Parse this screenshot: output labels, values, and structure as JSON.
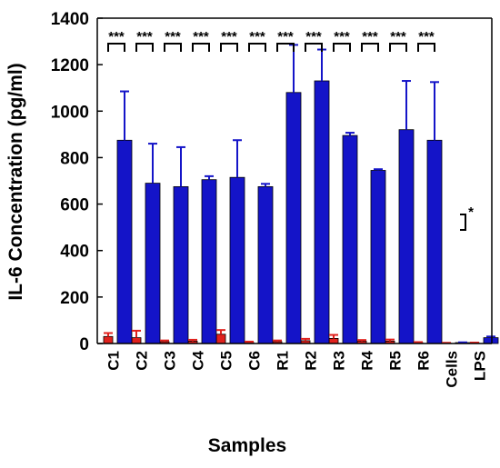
{
  "chart_data": {
    "type": "bar",
    "title": "",
    "xlabel": "Samples",
    "ylabel": "IL-6 Concentration (pg/ml)",
    "ylim": [
      0,
      1400
    ],
    "yticks": [
      0,
      200,
      400,
      600,
      800,
      1000,
      1200,
      1400
    ],
    "categories": [
      "C1",
      "C2",
      "C3",
      "C4",
      "C5",
      "C6",
      "R1",
      "R2",
      "R3",
      "R4",
      "R5",
      "R6",
      "Cells",
      "LPS"
    ],
    "series": [
      {
        "color": "#e0211d",
        "values": [
          30,
          25,
          8,
          10,
          40,
          5,
          8,
          12,
          22,
          10,
          10,
          4,
          2,
          3
        ],
        "errors": [
          15,
          30,
          5,
          6,
          18,
          3,
          5,
          8,
          15,
          5,
          7,
          2,
          1,
          1
        ]
      },
      {
        "color": "#1414c8",
        "values": [
          875,
          690,
          675,
          705,
          715,
          675,
          1080,
          1130,
          895,
          745,
          920,
          875,
          4,
          25
        ],
        "errors": [
          210,
          170,
          170,
          15,
          160,
          12,
          205,
          135,
          12,
          5,
          210,
          250,
          1,
          5
        ]
      }
    ],
    "significance": [
      {
        "category": "C1",
        "label": "***"
      },
      {
        "category": "C2",
        "label": "***"
      },
      {
        "category": "C3",
        "label": "***"
      },
      {
        "category": "C4",
        "label": "***"
      },
      {
        "category": "C5",
        "label": "***"
      },
      {
        "category": "C6",
        "label": "***"
      },
      {
        "category": "R1",
        "label": "***"
      },
      {
        "category": "R2",
        "label": "***"
      },
      {
        "category": "R3",
        "label": "***"
      },
      {
        "category": "R4",
        "label": "***"
      },
      {
        "category": "R5",
        "label": "***"
      },
      {
        "category": "R6",
        "label": "***"
      },
      {
        "category": "Cells-LPS",
        "label": "*"
      }
    ],
    "grid": false,
    "legend": "none"
  }
}
